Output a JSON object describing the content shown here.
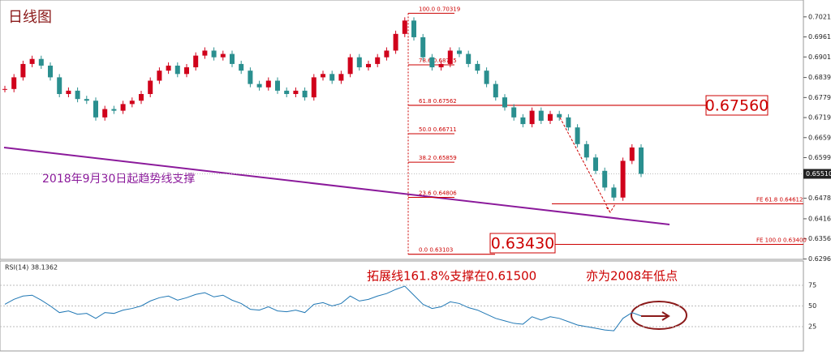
{
  "chart_data": {
    "type": "candlestick",
    "title": "日线图",
    "ylim": [
      0.6295,
      0.70715
    ],
    "yticks": [
      {
        "value": 0.7021,
        "label": "0.70210"
      },
      {
        "value": 0.6961,
        "label": "0.69610"
      },
      {
        "value": 0.6901,
        "label": "0.69010"
      },
      {
        "value": 0.68395,
        "label": "0.68395"
      },
      {
        "value": 0.67795,
        "label": "0.67795"
      },
      {
        "value": 0.67195,
        "label": "0.67195"
      },
      {
        "value": 0.66595,
        "label": "0.66595"
      },
      {
        "value": 0.65995,
        "label": "0.65995"
      },
      {
        "value": 0.6478,
        "label": "0.64780"
      },
      {
        "value": 0.64165,
        "label": "0.64165"
      },
      {
        "value": 0.63565,
        "label": "0.63565"
      },
      {
        "value": 0.6296,
        "label": "0.62960"
      }
    ],
    "current_price": {
      "value": 0.6551,
      "label": "0.65510"
    },
    "close": [
      0.6805,
      0.684,
      0.688,
      0.6895,
      0.6875,
      0.684,
      0.679,
      0.68,
      0.6775,
      0.677,
      0.672,
      0.6745,
      0.674,
      0.676,
      0.677,
      0.679,
      0.683,
      0.686,
      0.6875,
      0.685,
      0.687,
      0.6905,
      0.692,
      0.69,
      0.691,
      0.688,
      0.686,
      0.682,
      0.681,
      0.683,
      0.68,
      0.679,
      0.68,
      0.678,
      0.684,
      0.685,
      0.683,
      0.685,
      0.69,
      0.687,
      0.688,
      0.69,
      0.692,
      0.697,
      0.701,
      0.696,
      0.69,
      0.687,
      0.688,
      0.692,
      0.691,
      0.688,
      0.686,
      0.682,
      0.678,
      0.675,
      0.672,
      0.67,
      0.674,
      0.671,
      0.673,
      0.672,
      0.669,
      0.664,
      0.66,
      0.656,
      0.651,
      0.648,
      0.659,
      0.663,
      0.6551
    ],
    "up_color": "#d0021b",
    "down_color": "#2a8f8f",
    "fib_levels": [
      {
        "label": "100.0  0.70319",
        "value": 0.70319
      },
      {
        "label": "78.6  0.68775",
        "value": 0.68775
      },
      {
        "label": "61.8  0.67562",
        "value": 0.67562
      },
      {
        "label": "50.0  0.66711",
        "value": 0.66711
      },
      {
        "label": "38.2  0.65859",
        "value": 0.65859
      },
      {
        "label": "23.6  0.64806",
        "value": 0.64806
      },
      {
        "label": "0.0  0.63103",
        "value": 0.63103
      }
    ],
    "fe_levels": [
      {
        "label": "FE 61.8  0.64612",
        "value": 0.64612
      },
      {
        "label": "FE 100.0  0.63400",
        "value": 0.634
      }
    ],
    "boxes": [
      {
        "label": "0.67560",
        "value": 0.6756
      },
      {
        "label": "0.63430",
        "value": 0.6343
      }
    ],
    "annotations": [
      "2018年9月30日起趋势线支撑",
      "拓展线161.8%支撑在0.61500",
      "亦为2008年低点"
    ],
    "rsi": {
      "label": "RSI(14) 38.1362",
      "ylim": [
        0,
        100
      ],
      "yticks": [
        25,
        50,
        75
      ],
      "color": "#1f77b4",
      "values": [
        52,
        58,
        62,
        63,
        57,
        50,
        42,
        44,
        40,
        41,
        35,
        42,
        41,
        45,
        47,
        50,
        56,
        60,
        62,
        57,
        60,
        64,
        66,
        61,
        63,
        57,
        53,
        46,
        45,
        49,
        44,
        43,
        45,
        42,
        52,
        54,
        50,
        53,
        62,
        56,
        58,
        62,
        65,
        70,
        74,
        63,
        52,
        47,
        49,
        55,
        53,
        48,
        45,
        40,
        35,
        32,
        29,
        28,
        37,
        33,
        37,
        35,
        31,
        27,
        25,
        23,
        21,
        20,
        35,
        42,
        38
      ]
    }
  }
}
